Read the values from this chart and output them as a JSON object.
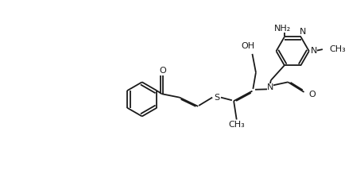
{
  "bg_color": "#ffffff",
  "line_color": "#1a1a1a",
  "lw": 1.3,
  "fs": 8.0,
  "fig_w": 4.58,
  "fig_h": 2.14,
  "dpi": 100,
  "xlim": [
    0,
    10.2
  ],
  "ylim": [
    0,
    4.6
  ]
}
